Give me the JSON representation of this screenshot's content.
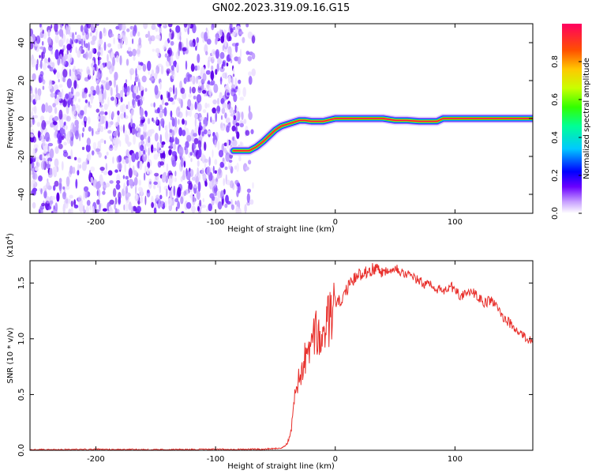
{
  "figure": {
    "title": "GN02.2023.319.09.16.G15"
  },
  "chart_data": [
    {
      "type": "heatmap",
      "name": "spectrogram",
      "title": "GN02.2023.319.09.16.G15",
      "xlabel": "Height of straight line (km)",
      "ylabel": "Frequency (Hz)",
      "xlim": [
        -255,
        165
      ],
      "ylim": [
        -50,
        50
      ],
      "x_ticks": [
        -200,
        -100,
        0,
        100
      ],
      "x_tick_labels": [
        "-200",
        "-100",
        "0",
        "100"
      ],
      "y_ticks": [
        -40,
        -20,
        0,
        20,
        40
      ],
      "y_tick_labels": [
        "-40",
        "-20",
        "0",
        "20",
        "40"
      ],
      "noise_region_x": [
        -255,
        -80
      ],
      "track": {
        "x": [
          -85,
          -72,
          -66,
          -60,
          -55,
          -50,
          -45,
          -40,
          -35,
          -30,
          -25,
          -20,
          -10,
          0,
          10,
          20,
          30,
          40,
          50,
          60,
          70,
          80,
          85,
          90,
          100,
          110,
          130,
          150,
          165
        ],
        "y": [
          -17,
          -17,
          -15,
          -12,
          -9,
          -6,
          -4,
          -3,
          -2,
          -1,
          -1,
          -1.5,
          -1.5,
          0,
          0,
          0,
          0,
          0,
          -1,
          -1,
          -1.5,
          -1.5,
          -1.5,
          0,
          0,
          0,
          0,
          0,
          0
        ]
      }
    },
    {
      "type": "bar",
      "name": "colorbar",
      "ylabel": "Normalized spectral amplitude",
      "ylim": [
        0,
        1
      ],
      "ticks": [
        0.0,
        0.2,
        0.4,
        0.6,
        0.8
      ],
      "tick_labels": [
        "0.0",
        "0.2",
        "0.4",
        "0.6",
        "0.8"
      ],
      "colors": [
        "#ffffff",
        "#c8a0ff",
        "#6a00ff",
        "#0000ff",
        "#00c8ff",
        "#00ff96",
        "#32ff00",
        "#c8ff00",
        "#ffc800",
        "#ff5000",
        "#ff0060"
      ]
    },
    {
      "type": "line",
      "name": "snr",
      "xlabel": "Height of straight line (km)",
      "ylabel": "SNR (10 * v/v)",
      "y_multiplier": "(x10",
      "y_multiplier_exp": "4",
      "y_multiplier_close": ")",
      "xlim": [
        -255,
        165
      ],
      "ylim": [
        0,
        1.7
      ],
      "x_ticks": [
        -200,
        -100,
        0,
        100
      ],
      "x_tick_labels": [
        "-200",
        "-100",
        "0",
        "100"
      ],
      "y_ticks": [
        0.0,
        0.5,
        1.0,
        1.5
      ],
      "y_tick_labels": [
        "0.0",
        "0.5",
        "1.0",
        "1.5"
      ],
      "color": "#e8302c",
      "series": [
        {
          "name": "SNR",
          "x": [
            -255,
            -200,
            -150,
            -100,
            -60,
            -45,
            -40,
            -38,
            -36,
            -34,
            -32,
            -30,
            -28,
            -26,
            -24,
            -22,
            -20,
            -18,
            -15,
            -12,
            -8,
            -4,
            0,
            5,
            10,
            15,
            20,
            25,
            30,
            35,
            40,
            45,
            50,
            55,
            60,
            65,
            70,
            75,
            80,
            85,
            90,
            95,
            100,
            105,
            110,
            115,
            120,
            125,
            130,
            135,
            140,
            145,
            150,
            155,
            160,
            165
          ],
          "y": [
            0.005,
            0.008,
            0.006,
            0.008,
            0.01,
            0.02,
            0.06,
            0.15,
            0.25,
            0.45,
            0.6,
            0.7,
            0.62,
            0.85,
            0.75,
            0.95,
            0.9,
            1.0,
            1.05,
            0.95,
            1.1,
            1.2,
            1.3,
            1.35,
            1.45,
            1.52,
            1.58,
            1.6,
            1.62,
            1.63,
            1.6,
            1.62,
            1.65,
            1.6,
            1.58,
            1.55,
            1.52,
            1.48,
            1.5,
            1.45,
            1.42,
            1.47,
            1.45,
            1.38,
            1.4,
            1.42,
            1.36,
            1.32,
            1.35,
            1.28,
            1.2,
            1.15,
            1.08,
            1.05,
            1.0,
            0.98
          ]
        }
      ]
    }
  ]
}
